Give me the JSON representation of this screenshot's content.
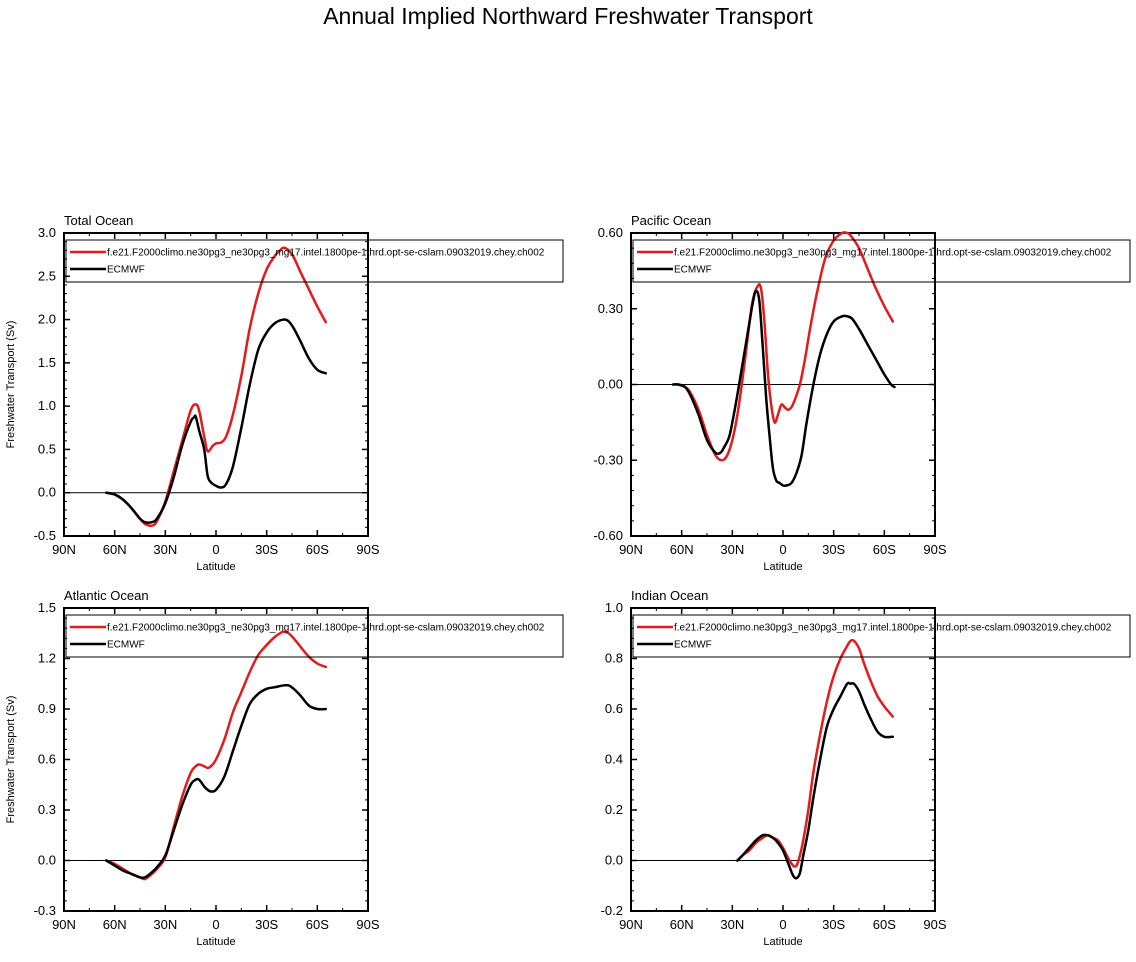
{
  "figure_title": "Annual Implied Northward Freshwater Transport",
  "colors": {
    "model": "#e41a1c",
    "obs": "#000000",
    "axis": "#000000"
  },
  "chart_data": [
    {
      "type": "line",
      "title": "Total Ocean",
      "xlabel": "Latitude",
      "ylabel": "Freshwater Transport (Sv)",
      "xlim": [
        90,
        -90
      ],
      "ylim": [
        -0.5,
        3.0
      ],
      "x_ticks": [
        90,
        60,
        30,
        0,
        -30,
        -60,
        -90
      ],
      "x_tick_labels": [
        "90N",
        "60N",
        "30N",
        "0",
        "30S",
        "60S",
        "90S"
      ],
      "y_ticks": [
        -0.5,
        0.0,
        0.5,
        1.0,
        1.5,
        2.0,
        2.5,
        3.0
      ],
      "y_tick_labels": [
        "-0.5",
        "0.0",
        "0.5",
        "1.0",
        "1.5",
        "2.0",
        "2.5",
        "3.0"
      ],
      "zero_line": true,
      "legend_position": "top",
      "series": [
        {
          "name": "f.e21.F2000climo.ne30pg3_ne30pg3_mg17.intel.1800pe-1thrd.opt-se-cslam.09032019.chey.ch002",
          "x": [
            65,
            60,
            55,
            50,
            45,
            42,
            38,
            35,
            30,
            25,
            20,
            15,
            12,
            10,
            7,
            5,
            2,
            0,
            -3,
            -6,
            -10,
            -15,
            -20,
            -25,
            -30,
            -35,
            -38,
            -40,
            -43,
            -46,
            -50,
            -55,
            -60,
            -65
          ],
          "y": [
            0.0,
            -0.02,
            -0.08,
            -0.18,
            -0.3,
            -0.36,
            -0.38,
            -0.33,
            -0.1,
            0.25,
            0.6,
            0.95,
            1.02,
            0.95,
            0.65,
            0.48,
            0.54,
            0.57,
            0.58,
            0.65,
            0.9,
            1.35,
            1.9,
            2.3,
            2.58,
            2.74,
            2.8,
            2.83,
            2.8,
            2.72,
            2.55,
            2.35,
            2.15,
            1.97
          ]
        },
        {
          "name": "ECMWF",
          "x": [
            65,
            60,
            55,
            50,
            45,
            42,
            38,
            35,
            30,
            25,
            20,
            15,
            13,
            12,
            10,
            7,
            5,
            3,
            0,
            -3,
            -6,
            -10,
            -15,
            -20,
            -25,
            -30,
            -35,
            -40,
            -43,
            -46,
            -50,
            -55,
            -60,
            -65
          ],
          "y": [
            0.0,
            -0.02,
            -0.08,
            -0.18,
            -0.3,
            -0.34,
            -0.34,
            -0.3,
            -0.12,
            0.18,
            0.55,
            0.82,
            0.87,
            0.88,
            0.72,
            0.5,
            0.2,
            0.12,
            0.08,
            0.06,
            0.1,
            0.3,
            0.75,
            1.25,
            1.65,
            1.85,
            1.96,
            2.0,
            1.98,
            1.9,
            1.75,
            1.55,
            1.42,
            1.38
          ]
        }
      ]
    },
    {
      "type": "line",
      "title": "Pacific Ocean",
      "xlabel": "Latitude",
      "ylabel": "",
      "xlim": [
        90,
        -90
      ],
      "ylim": [
        -0.6,
        0.6
      ],
      "x_ticks": [
        90,
        60,
        30,
        0,
        -30,
        -60,
        -90
      ],
      "x_tick_labels": [
        "90N",
        "60N",
        "30N",
        "0",
        "30S",
        "60S",
        "90S"
      ],
      "y_ticks": [
        -0.6,
        -0.3,
        0.0,
        0.3,
        0.6
      ],
      "y_tick_labels": [
        "-0.60",
        "-0.30",
        "0.00",
        "0.30",
        "0.60"
      ],
      "zero_line": true,
      "legend_position": "top",
      "series": [
        {
          "name": "f.e21.F2000climo.ne30pg3_ne30pg3_mg17.intel.1800pe-1thrd.opt-se-cslam.09032019.chey.ch002",
          "x": [
            65,
            62,
            58,
            55,
            50,
            45,
            40,
            36,
            33,
            30,
            27,
            24,
            21,
            18,
            15,
            13,
            11,
            9,
            7,
            5,
            3,
            1,
            -1,
            -3,
            -5,
            -7,
            -10,
            -13,
            -16,
            -20,
            -25,
            -30,
            -35,
            -38,
            -40,
            -45,
            -50,
            -55,
            -60,
            -65
          ],
          "y": [
            0.0,
            0.0,
            -0.01,
            -0.03,
            -0.1,
            -0.2,
            -0.28,
            -0.3,
            -0.28,
            -0.22,
            -0.12,
            0.02,
            0.18,
            0.33,
            0.39,
            0.38,
            0.25,
            0.05,
            -0.08,
            -0.15,
            -0.12,
            -0.08,
            -0.09,
            -0.1,
            -0.09,
            -0.06,
            0.0,
            0.1,
            0.22,
            0.36,
            0.5,
            0.57,
            0.6,
            0.6,
            0.59,
            0.54,
            0.46,
            0.38,
            0.31,
            0.25
          ]
        },
        {
          "name": "ECMWF",
          "x": [
            65,
            62,
            58,
            55,
            50,
            45,
            40,
            37,
            35,
            32,
            30,
            27,
            24,
            21,
            18,
            16,
            14,
            12,
            10,
            8,
            6,
            4,
            2,
            0,
            -2,
            -5,
            -8,
            -11,
            -14,
            -18,
            -22,
            -26,
            -30,
            -35,
            -38,
            -41,
            -45,
            -50,
            -55,
            -60,
            -64,
            -66
          ],
          "y": [
            0.0,
            0.0,
            -0.01,
            -0.04,
            -0.12,
            -0.22,
            -0.27,
            -0.27,
            -0.25,
            -0.21,
            -0.15,
            -0.04,
            0.08,
            0.2,
            0.32,
            0.37,
            0.33,
            0.15,
            -0.05,
            -0.2,
            -0.33,
            -0.38,
            -0.39,
            -0.4,
            -0.4,
            -0.39,
            -0.35,
            -0.28,
            -0.15,
            0.0,
            0.12,
            0.2,
            0.25,
            0.27,
            0.27,
            0.26,
            0.22,
            0.16,
            0.1,
            0.04,
            0.0,
            -0.01
          ]
        }
      ]
    },
    {
      "type": "line",
      "title": "Atlantic Ocean",
      "xlabel": "Latitude",
      "ylabel": "Freshwater Transport (Sv)",
      "xlim": [
        90,
        -90
      ],
      "ylim": [
        -0.3,
        1.5
      ],
      "x_ticks": [
        90,
        60,
        30,
        0,
        -30,
        -60,
        -90
      ],
      "x_tick_labels": [
        "90N",
        "60N",
        "30N",
        "0",
        "30S",
        "60S",
        "90S"
      ],
      "y_ticks": [
        -0.3,
        0.0,
        0.3,
        0.6,
        0.9,
        1.2,
        1.5
      ],
      "y_tick_labels": [
        "-0.3",
        "0.0",
        "0.3",
        "0.6",
        "0.9",
        "1.2",
        "1.5"
      ],
      "zero_line": true,
      "legend_position": "top",
      "series": [
        {
          "name": "f.e21.F2000climo.ne30pg3_ne30pg3_mg17.intel.1800pe-1thrd.opt-se-cslam.09032019.chey.ch002",
          "x": [
            65,
            60,
            55,
            50,
            45,
            42,
            38,
            35,
            30,
            25,
            20,
            15,
            12,
            10,
            7,
            5,
            3,
            0,
            -5,
            -10,
            -15,
            -20,
            -25,
            -30,
            -35,
            -38,
            -40,
            -43,
            -46,
            -50,
            -55,
            -60,
            -65
          ],
          "y": [
            0.0,
            -0.02,
            -0.05,
            -0.08,
            -0.1,
            -0.11,
            -0.08,
            -0.05,
            0.02,
            0.2,
            0.38,
            0.52,
            0.56,
            0.57,
            0.56,
            0.55,
            0.56,
            0.6,
            0.72,
            0.88,
            1.0,
            1.12,
            1.22,
            1.28,
            1.33,
            1.35,
            1.36,
            1.35,
            1.32,
            1.27,
            1.21,
            1.17,
            1.15
          ]
        },
        {
          "name": "ECMWF",
          "x": [
            65,
            60,
            55,
            50,
            45,
            42,
            38,
            35,
            30,
            25,
            20,
            15,
            12,
            10,
            7,
            5,
            3,
            0,
            -5,
            -10,
            -15,
            -20,
            -25,
            -30,
            -35,
            -40,
            -43,
            -46,
            -50,
            -55,
            -60,
            -65
          ],
          "y": [
            0.0,
            -0.03,
            -0.06,
            -0.08,
            -0.1,
            -0.1,
            -0.07,
            -0.04,
            0.03,
            0.18,
            0.33,
            0.45,
            0.48,
            0.48,
            0.44,
            0.42,
            0.41,
            0.42,
            0.5,
            0.65,
            0.8,
            0.93,
            0.99,
            1.02,
            1.03,
            1.04,
            1.04,
            1.02,
            0.98,
            0.92,
            0.9,
            0.9
          ]
        }
      ]
    },
    {
      "type": "line",
      "title": "Indian Ocean",
      "xlabel": "Latitude",
      "ylabel": "",
      "xlim": [
        90,
        -90
      ],
      "ylim": [
        -0.2,
        1.0
      ],
      "x_ticks": [
        90,
        60,
        30,
        0,
        -30,
        -60,
        -90
      ],
      "x_tick_labels": [
        "90N",
        "60N",
        "30N",
        "0",
        "30S",
        "60S",
        "90S"
      ],
      "y_ticks": [
        -0.2,
        0.0,
        0.2,
        0.4,
        0.6,
        0.8,
        1.0
      ],
      "y_tick_labels": [
        "-0.2",
        "0.0",
        "0.2",
        "0.4",
        "0.6",
        "0.8",
        "1.0"
      ],
      "zero_line": true,
      "legend_position": "top",
      "series": [
        {
          "name": "f.e21.F2000climo.ne30pg3_ne30pg3_mg17.intel.1800pe-1thrd.opt-se-cslam.09032019.chey.ch002",
          "x": [
            27,
            24,
            20,
            16,
            12,
            9,
            6,
            3,
            0,
            -3,
            -6,
            -8,
            -10,
            -12,
            -15,
            -18,
            -22,
            -26,
            -30,
            -34,
            -38,
            -40,
            -42,
            -45,
            -48,
            -52,
            -56,
            -60,
            -65
          ],
          "y": [
            0.0,
            0.02,
            0.04,
            0.07,
            0.09,
            0.1,
            0.09,
            0.08,
            0.05,
            0.01,
            -0.02,
            -0.02,
            0.02,
            0.08,
            0.2,
            0.35,
            0.5,
            0.63,
            0.73,
            0.8,
            0.85,
            0.87,
            0.87,
            0.84,
            0.78,
            0.71,
            0.65,
            0.61,
            0.57
          ]
        },
        {
          "name": "ECMWF",
          "x": [
            27,
            24,
            20,
            16,
            12,
            9,
            6,
            3,
            0,
            -3,
            -6,
            -8,
            -10,
            -12,
            -15,
            -18,
            -22,
            -26,
            -30,
            -34,
            -38,
            -40,
            -42,
            -45,
            -48,
            -52,
            -56,
            -60,
            -65
          ],
          "y": [
            0.0,
            0.02,
            0.05,
            0.08,
            0.1,
            0.1,
            0.09,
            0.07,
            0.04,
            -0.01,
            -0.06,
            -0.07,
            -0.05,
            0.02,
            0.12,
            0.25,
            0.4,
            0.53,
            0.6,
            0.65,
            0.7,
            0.7,
            0.7,
            0.67,
            0.62,
            0.56,
            0.51,
            0.49,
            0.49
          ]
        }
      ]
    }
  ]
}
